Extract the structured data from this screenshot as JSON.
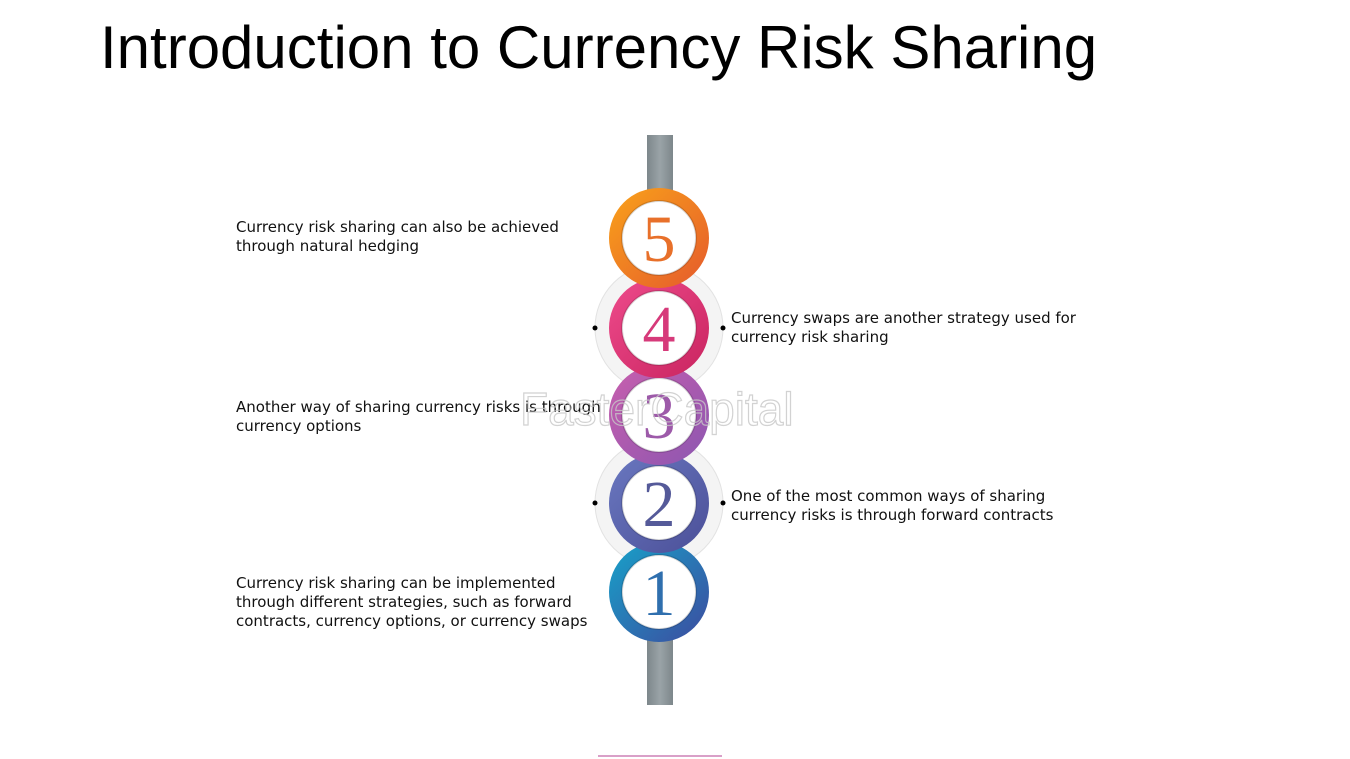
{
  "title": "Introduction to Currency Risk Sharing",
  "watermark": "FasterCapital",
  "steps": [
    {
      "number": 1,
      "lines": [
        "Currency risk sharing can be implemented",
        "through different strategies, such as forward",
        "contracts, currency options, or currency swaps"
      ]
    },
    {
      "number": 2,
      "lines": [
        "One of the most common ways of sharing",
        "currency risks is through forward contracts"
      ]
    },
    {
      "number": 3,
      "lines": [
        "Another way of sharing currency risks is through",
        "currency options"
      ]
    },
    {
      "number": 4,
      "lines": [
        "Currency swaps are another strategy used for",
        "currency risk sharing"
      ]
    },
    {
      "number": 5,
      "lines": [
        "Currency risk sharing can also be achieved",
        "through natural hedging"
      ]
    }
  ]
}
